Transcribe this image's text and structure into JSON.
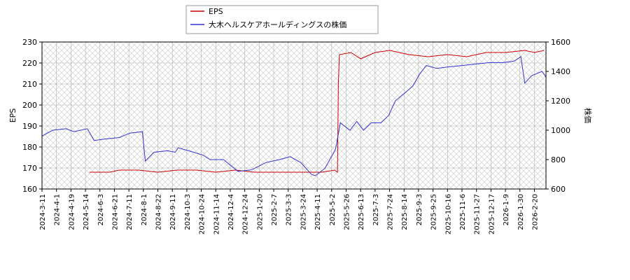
{
  "chart_data": {
    "type": "line",
    "xlabel": null,
    "ylabel": "EPS",
    "y2label": "株価",
    "xlim": [
      0,
      522
    ],
    "xticks": [
      {
        "value": 0,
        "label": "2024-3-11"
      },
      {
        "value": 15,
        "label": "2024-4-1"
      },
      {
        "value": 30,
        "label": "2024-4-19"
      },
      {
        "value": 45,
        "label": "2024-5-14"
      },
      {
        "value": 60,
        "label": "2024-6-3"
      },
      {
        "value": 75,
        "label": "2024-6-21"
      },
      {
        "value": 90,
        "label": "2024-7-11"
      },
      {
        "value": 105,
        "label": "2024-8-1"
      },
      {
        "value": 120,
        "label": "2024-8-22"
      },
      {
        "value": 135,
        "label": "2024-9-11"
      },
      {
        "value": 150,
        "label": "2024-10-3"
      },
      {
        "value": 165,
        "label": "2024-10-24"
      },
      {
        "value": 180,
        "label": "2024-11-14"
      },
      {
        "value": 195,
        "label": "2024-12-4"
      },
      {
        "value": 210,
        "label": "2024-12-24"
      },
      {
        "value": 225,
        "label": "2025-1-20"
      },
      {
        "value": 240,
        "label": "2025-2-7"
      },
      {
        "value": 255,
        "label": "2025-3-3"
      },
      {
        "value": 270,
        "label": "2025-3-24"
      },
      {
        "value": 285,
        "label": "2025-4-11"
      },
      {
        "value": 300,
        "label": "2025-5-2"
      },
      {
        "value": 315,
        "label": "2025-5-26"
      },
      {
        "value": 330,
        "label": "2025-6-13"
      },
      {
        "value": 345,
        "label": "2025-7-3"
      },
      {
        "value": 360,
        "label": "2025-7-24"
      },
      {
        "value": 375,
        "label": "2025-8-14"
      },
      {
        "value": 390,
        "label": "2025-9-3"
      },
      {
        "value": 405,
        "label": "2025-9-25"
      },
      {
        "value": 420,
        "label": "2025-10-16"
      },
      {
        "value": 435,
        "label": "2025-11-6"
      },
      {
        "value": 450,
        "label": "2025-11-27"
      },
      {
        "value": 465,
        "label": "2025-12-17"
      },
      {
        "value": 480,
        "label": "2026-1-9"
      },
      {
        "value": 495,
        "label": "2026-1-30"
      },
      {
        "value": 510,
        "label": "2026-2-20"
      }
    ],
    "ylim": [
      160,
      230
    ],
    "yticks": [
      160,
      170,
      180,
      190,
      200,
      210,
      220,
      230
    ],
    "y2lim": [
      600,
      1600
    ],
    "y2ticks": [
      600,
      800,
      1000,
      1200,
      1400,
      1600
    ],
    "grid": true,
    "series": [
      {
        "name": "EPS",
        "color": "#cc0000",
        "x": [
          49,
          70,
          80,
          100,
          120,
          140,
          160,
          180,
          200,
          220,
          250,
          270,
          290,
          303,
          306,
          307,
          308,
          320,
          330,
          345,
          360,
          380,
          400,
          420,
          440,
          460,
          480,
          500,
          510,
          520
        ],
        "values": [
          168,
          168,
          169,
          169,
          168,
          169,
          169,
          168,
          169,
          168,
          168,
          168,
          168,
          169,
          168,
          210,
          224,
          225,
          222,
          225,
          226,
          224,
          223,
          224,
          223,
          225,
          225,
          226,
          225,
          226
        ]
      },
      {
        "name": "大木ヘルスケアホールディングスの株価",
        "color": "#3333cc",
        "axis": "y2",
        "x": [
          0,
          11,
          25,
          33,
          47,
          54,
          65,
          80,
          91,
          104,
          107,
          116,
          130,
          138,
          141,
          152,
          167,
          174,
          188,
          203,
          217,
          232,
          246,
          257,
          268,
          279,
          283,
          293,
          304,
          309,
          319,
          326,
          333,
          341,
          351,
          359,
          366,
          377,
          384,
          391,
          398,
          409,
          420,
          435,
          449,
          464,
          478,
          489,
          496,
          500,
          507,
          514,
          518,
          522
        ],
        "values": [
          960,
          1000,
          1010,
          990,
          1010,
          930,
          940,
          950,
          980,
          990,
          790,
          850,
          860,
          850,
          880,
          860,
          830,
          800,
          800,
          720,
          730,
          780,
          800,
          820,
          780,
          700,
          690,
          740,
          870,
          1050,
          1000,
          1060,
          1000,
          1050,
          1050,
          1100,
          1200,
          1260,
          1300,
          1380,
          1440,
          1420,
          1430,
          1440,
          1450,
          1460,
          1460,
          1470,
          1500,
          1320,
          1370,
          1390,
          1400,
          1360
        ]
      }
    ]
  }
}
